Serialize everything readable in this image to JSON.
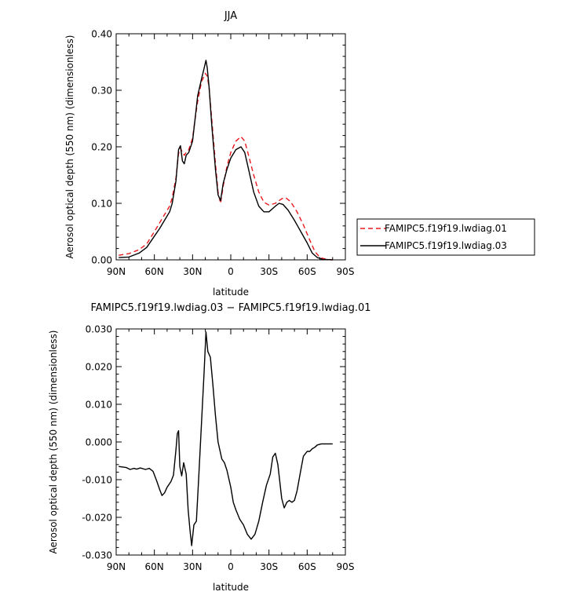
{
  "chart_data": [
    {
      "type": "line",
      "title": "JJA",
      "xlabel": "latitude",
      "ylabel": "Aerosol optical depth (550 nm) (dimensionless)",
      "xlim": [
        90,
        -90
      ],
      "ylim": [
        0,
        0.4
      ],
      "x_ticks": [
        90,
        60,
        30,
        0,
        -30,
        -60,
        -90
      ],
      "x_tick_labels": [
        "90N",
        "60N",
        "30N",
        "0",
        "30S",
        "60S",
        "90S"
      ],
      "y_ticks": [
        0,
        0.1,
        0.2,
        0.3,
        0.4
      ],
      "y_tick_labels": [
        "0.00",
        "0.10",
        "0.20",
        "0.30",
        "0.40"
      ],
      "legend_position": "outside-right",
      "series": [
        {
          "name": "FAMIPC5.f19f19.lwdiag.01",
          "color": "#e8191e",
          "dash": "dashed",
          "points": [
            [
              88,
              0.008
            ],
            [
              80,
              0.011
            ],
            [
              72,
              0.018
            ],
            [
              66,
              0.028
            ],
            [
              60,
              0.05
            ],
            [
              56,
              0.065
            ],
            [
              52,
              0.08
            ],
            [
              48,
              0.095
            ],
            [
              46,
              0.11
            ],
            [
              43,
              0.145
            ],
            [
              41,
              0.188
            ],
            [
              39.5,
              0.198
            ],
            [
              38,
              0.19
            ],
            [
              36.5,
              0.185
            ],
            [
              35,
              0.19
            ],
            [
              33,
              0.195
            ],
            [
              30,
              0.215
            ],
            [
              28,
              0.25
            ],
            [
              26,
              0.28
            ],
            [
              23,
              0.315
            ],
            [
              20,
              0.33
            ],
            [
              18.5,
              0.325
            ],
            [
              17,
              0.305
            ],
            [
              15,
              0.25
            ],
            [
              12,
              0.17
            ],
            [
              10,
              0.12
            ],
            [
              8,
              0.1
            ],
            [
              6,
              0.13
            ],
            [
              3,
              0.165
            ],
            [
              0,
              0.19
            ],
            [
              -4,
              0.21
            ],
            [
              -8,
              0.218
            ],
            [
              -11,
              0.21
            ],
            [
              -14,
              0.185
            ],
            [
              -18,
              0.15
            ],
            [
              -22,
              0.12
            ],
            [
              -26,
              0.102
            ],
            [
              -30,
              0.097
            ],
            [
              -35,
              0.1
            ],
            [
              -40,
              0.108
            ],
            [
              -43,
              0.11
            ],
            [
              -47,
              0.103
            ],
            [
              -52,
              0.085
            ],
            [
              -57,
              0.062
            ],
            [
              -62,
              0.035
            ],
            [
              -66,
              0.015
            ],
            [
              -70,
              0.004
            ],
            [
              -75,
              0.001
            ],
            [
              -80,
              0.0
            ]
          ]
        },
        {
          "name": "FAMIPC5.f19f19.lwdiag.03",
          "color": "#000000",
          "dash": "solid",
          "points": [
            [
              88,
              0.004
            ],
            [
              80,
              0.005
            ],
            [
              72,
              0.012
            ],
            [
              66,
              0.022
            ],
            [
              60,
              0.042
            ],
            [
              56,
              0.055
            ],
            [
              52,
              0.07
            ],
            [
              48,
              0.085
            ],
            [
              46,
              0.1
            ],
            [
              43,
              0.14
            ],
            [
              41,
              0.195
            ],
            [
              39.5,
              0.202
            ],
            [
              38,
              0.175
            ],
            [
              36.5,
              0.17
            ],
            [
              35,
              0.185
            ],
            [
              33,
              0.19
            ],
            [
              30,
              0.21
            ],
            [
              28,
              0.25
            ],
            [
              26,
              0.29
            ],
            [
              23,
              0.32
            ],
            [
              21,
              0.338
            ],
            [
              19.5,
              0.353
            ],
            [
              18.5,
              0.34
            ],
            [
              17,
              0.305
            ],
            [
              15,
              0.24
            ],
            [
              12,
              0.16
            ],
            [
              10,
              0.115
            ],
            [
              8,
              0.105
            ],
            [
              6,
              0.135
            ],
            [
              3,
              0.16
            ],
            [
              0,
              0.18
            ],
            [
              -4,
              0.195
            ],
            [
              -8,
              0.2
            ],
            [
              -11,
              0.19
            ],
            [
              -14,
              0.16
            ],
            [
              -18,
              0.12
            ],
            [
              -22,
              0.095
            ],
            [
              -26,
              0.085
            ],
            [
              -30,
              0.085
            ],
            [
              -35,
              0.095
            ],
            [
              -38,
              0.1
            ],
            [
              -41,
              0.098
            ],
            [
              -45,
              0.088
            ],
            [
              -50,
              0.07
            ],
            [
              -55,
              0.05
            ],
            [
              -60,
              0.03
            ],
            [
              -64,
              0.012
            ],
            [
              -68,
              0.004
            ],
            [
              -72,
              0.001
            ],
            [
              -80,
              0.0
            ]
          ]
        }
      ]
    },
    {
      "type": "line",
      "title": "FAMIPC5.f19f19.lwdiag.03 − FAMIPC5.f19f19.lwdiag.01",
      "xlabel": "latitude",
      "ylabel": "Aerosol optical depth (550 nm) (dimensionless)",
      "xlim": [
        90,
        -90
      ],
      "ylim": [
        -0.03,
        0.03
      ],
      "x_ticks": [
        90,
        60,
        30,
        0,
        -30,
        -60,
        -90
      ],
      "x_tick_labels": [
        "90N",
        "60N",
        "30N",
        "0",
        "30S",
        "60S",
        "90S"
      ],
      "y_ticks": [
        -0.03,
        -0.02,
        -0.01,
        0,
        0.01,
        0.02,
        0.03
      ],
      "y_tick_labels": [
        "-0.030",
        "-0.020",
        "-0.010",
        "0.000",
        "0.010",
        "0.020",
        "0.030"
      ],
      "series": [
        {
          "color": "#000000",
          "dash": "solid",
          "points": [
            [
              88,
              -0.0065
            ],
            [
              82,
              -0.0068
            ],
            [
              79,
              -0.0073
            ],
            [
              76,
              -0.007
            ],
            [
              74,
              -0.0072
            ],
            [
              71,
              -0.0069
            ],
            [
              67,
              -0.0073
            ],
            [
              64,
              -0.007
            ],
            [
              61,
              -0.0078
            ],
            [
              58,
              -0.0105
            ],
            [
              56,
              -0.0125
            ],
            [
              54,
              -0.0142
            ],
            [
              52,
              -0.0135
            ],
            [
              50,
              -0.012
            ],
            [
              47,
              -0.0105
            ],
            [
              45,
              -0.0088
            ],
            [
              43,
              -0.002
            ],
            [
              42,
              0.0022
            ],
            [
              41,
              0.003
            ],
            [
              40,
              -0.0065
            ],
            [
              38.5,
              -0.009
            ],
            [
              37,
              -0.0055
            ],
            [
              35,
              -0.0085
            ],
            [
              33.5,
              -0.018
            ],
            [
              32,
              -0.0235
            ],
            [
              30.7,
              -0.0275
            ],
            [
              29,
              -0.022
            ],
            [
              27,
              -0.021
            ],
            [
              25,
              -0.0085
            ],
            [
              23,
              0.005
            ],
            [
              21,
              0.018
            ],
            [
              19.5,
              0.0292
            ],
            [
              18,
              0.024
            ],
            [
              16,
              0.0225
            ],
            [
              14,
              0.015
            ],
            [
              12,
              0.007
            ],
            [
              10,
              0.0
            ],
            [
              7,
              -0.0045
            ],
            [
              5,
              -0.0055
            ],
            [
              3,
              -0.0075
            ],
            [
              0,
              -0.012
            ],
            [
              -2,
              -0.016
            ],
            [
              -4,
              -0.018
            ],
            [
              -7,
              -0.0205
            ],
            [
              -10,
              -0.022
            ],
            [
              -13,
              -0.0245
            ],
            [
              -16,
              -0.0258
            ],
            [
              -19,
              -0.0245
            ],
            [
              -22,
              -0.021
            ],
            [
              -25,
              -0.016
            ],
            [
              -28,
              -0.0115
            ],
            [
              -31,
              -0.0085
            ],
            [
              -33,
              -0.004
            ],
            [
              -35,
              -0.003
            ],
            [
              -37,
              -0.006
            ],
            [
              -40,
              -0.015
            ],
            [
              -42,
              -0.0175
            ],
            [
              -44,
              -0.016
            ],
            [
              -46,
              -0.0155
            ],
            [
              -48,
              -0.016
            ],
            [
              -50,
              -0.0155
            ],
            [
              -52,
              -0.013
            ],
            [
              -55,
              -0.0075
            ],
            [
              -57,
              -0.0038
            ],
            [
              -60,
              -0.0025
            ],
            [
              -62,
              -0.0025
            ],
            [
              -64,
              -0.0018
            ],
            [
              -66,
              -0.0014
            ],
            [
              -68,
              -0.0008
            ],
            [
              -71,
              -0.0005
            ],
            [
              -80,
              -0.0005
            ]
          ]
        }
      ]
    }
  ]
}
